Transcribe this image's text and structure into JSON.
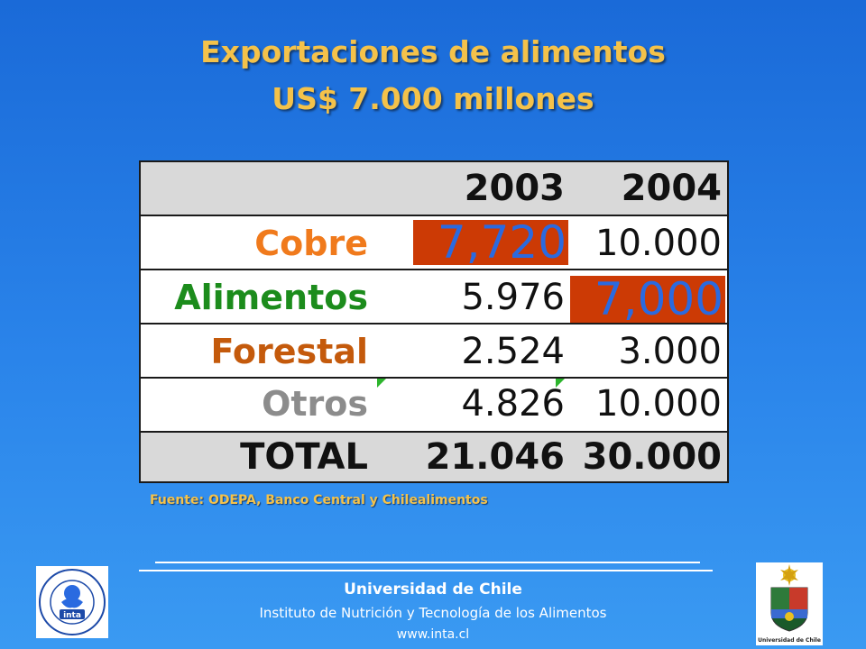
{
  "slide": {
    "title_line1": "Exportaciones de alimentos",
    "title_line2": "US$ 7.000 millones"
  },
  "table": {
    "headers": [
      "",
      "2003",
      "2004"
    ],
    "rows": [
      {
        "label": "Cobre",
        "y2003": "7,720",
        "y2004": "10.000",
        "label_color": "#f07a1c"
      },
      {
        "label": "Alimentos",
        "y2003": "5.976",
        "y2004": "7,000",
        "label_color": "#1c8c1c"
      },
      {
        "label": "Forestal",
        "y2003": "2.524",
        "y2004": "3.000",
        "label_color": "#c45a0c"
      },
      {
        "label": "Otros",
        "y2003": "4.826",
        "y2004": "10.000",
        "label_color": "#8c8c8c"
      }
    ],
    "total": {
      "label": "TOTAL",
      "y2003": "21.046",
      "y2004": "30.000"
    },
    "highlight_color": "#cc3a05",
    "highlight_text_color": "#2a6ae0"
  },
  "source": "Fuente: ODEPA, Banco Central y Chilealimentos",
  "footer": {
    "university": "Universidad de Chile",
    "institute": "Instituto de Nutrición y Tecnología de los Alimentos",
    "website": "www.inta.cl",
    "inta_logo_text": "inta",
    "inta_logo_ring": "Instituto de Nutrición y Tecnología de los Alimentos",
    "uchile_logo_caption": "Universidad de Chile"
  },
  "colors": {
    "title": "#f4c24a",
    "background_top": "#1a6ad8",
    "background_bottom": "#3a9af2"
  }
}
